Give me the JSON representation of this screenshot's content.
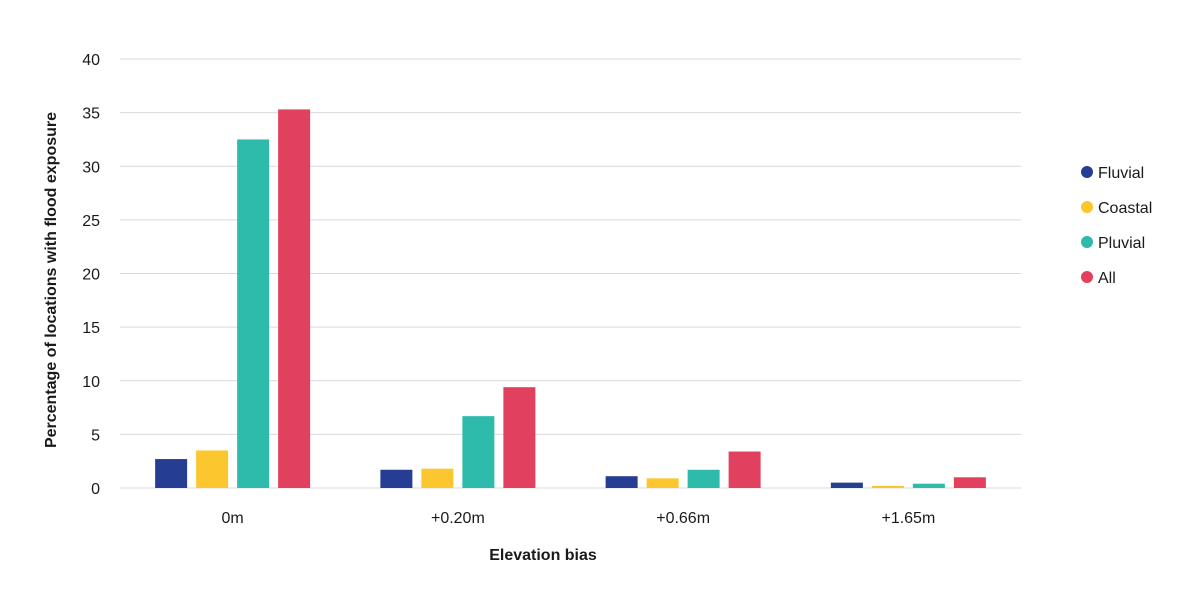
{
  "chart_data": {
    "type": "bar",
    "title": "",
    "xlabel": "Elevation bias",
    "ylabel": "Percentage of locations with flood exposure",
    "categories": [
      "0m",
      "+0.20m",
      "+0.66m",
      "+1.65m"
    ],
    "ylim": [
      0,
      40
    ],
    "yticks": [
      0,
      5,
      10,
      15,
      20,
      25,
      30,
      35,
      40
    ],
    "grid": true,
    "legend_position": "right",
    "series": [
      {
        "name": "Fluvial",
        "color": "#253E94",
        "values": [
          2.7,
          1.7,
          1.1,
          0.5
        ]
      },
      {
        "name": "Coastal",
        "color": "#FCC62E",
        "values": [
          3.5,
          1.8,
          0.9,
          0.2
        ]
      },
      {
        "name": "Pluvial",
        "color": "#2EBBAC",
        "values": [
          32.5,
          6.7,
          1.7,
          0.4
        ]
      },
      {
        "name": "All",
        "color": "#E2405F",
        "values": [
          35.3,
          9.4,
          3.4,
          1.0
        ]
      }
    ]
  }
}
